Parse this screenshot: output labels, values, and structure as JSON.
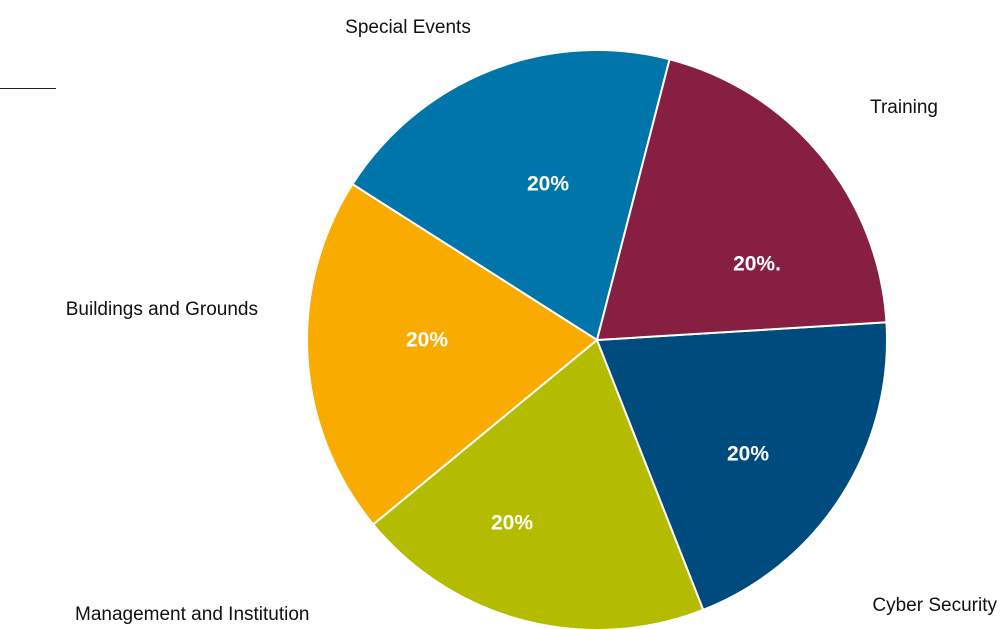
{
  "chart_data": {
    "type": "pie",
    "categories": [
      "Special Events",
      "Training",
      "Cyber Security",
      "Management and Institution",
      "Buildings and Grounds"
    ],
    "values": [
      20,
      20,
      20,
      20,
      20
    ],
    "data_labels": [
      "20%",
      "20%.",
      "20%",
      "20%",
      "20%"
    ],
    "colors": [
      "#0075aa",
      "#f9ab00",
      "#b4bc00",
      "#004b7d",
      "#861f41"
    ],
    "title": ""
  }
}
